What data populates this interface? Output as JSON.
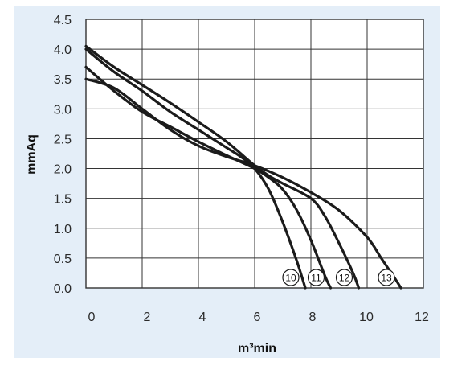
{
  "colors": {
    "panel_background": "#e4eef8",
    "plot_background": "#ffffff",
    "grid": "#333333",
    "curve": "#1b1b1b"
  },
  "chart_data": {
    "type": "line",
    "title": "",
    "xlabel": "m³min",
    "ylabel": "mmAq",
    "xlim": [
      0,
      12
    ],
    "ylim": [
      0,
      4.5
    ],
    "x_ticks": [
      "0",
      "2",
      "4",
      "6",
      "8",
      "10",
      "12"
    ],
    "y_ticks": [
      "0.0",
      "0.5",
      "1.0",
      "1.5",
      "2.0",
      "2.5",
      "3.0",
      "3.5",
      "4.0",
      "4.5"
    ],
    "grid": true,
    "series": [
      {
        "name": "10",
        "points": [
          [
            0,
            4.0
          ],
          [
            1,
            3.62
          ],
          [
            2,
            3.3
          ],
          [
            3,
            2.95
          ],
          [
            4,
            2.65
          ],
          [
            5,
            2.35
          ],
          [
            5.5,
            2.2
          ],
          [
            6,
            2.0
          ],
          [
            6.5,
            1.65
          ],
          [
            7,
            1.1
          ],
          [
            7.5,
            0.45
          ],
          [
            7.8,
            0.0
          ]
        ]
      },
      {
        "name": "11",
        "points": [
          [
            0,
            3.7
          ],
          [
            1,
            3.3
          ],
          [
            2,
            2.95
          ],
          [
            3,
            2.7
          ],
          [
            4,
            2.45
          ],
          [
            5,
            2.22
          ],
          [
            6,
            2.0
          ],
          [
            6.5,
            1.85
          ],
          [
            7,
            1.65
          ],
          [
            7.5,
            1.3
          ],
          [
            8,
            0.8
          ],
          [
            8.5,
            0.2
          ],
          [
            8.7,
            0.0
          ]
        ]
      },
      {
        "name": "12",
        "points": [
          [
            0,
            4.05
          ],
          [
            1,
            3.7
          ],
          [
            2,
            3.4
          ],
          [
            3,
            3.1
          ],
          [
            4,
            2.78
          ],
          [
            5,
            2.45
          ],
          [
            6,
            2.05
          ],
          [
            6.5,
            1.88
          ],
          [
            7,
            1.75
          ],
          [
            8,
            1.5
          ],
          [
            8.5,
            1.2
          ],
          [
            9,
            0.75
          ],
          [
            9.5,
            0.25
          ],
          [
            9.7,
            0.0
          ]
        ]
      },
      {
        "name": "13",
        "points": [
          [
            0,
            3.5
          ],
          [
            1,
            3.35
          ],
          [
            2,
            3.0
          ],
          [
            3,
            2.65
          ],
          [
            4,
            2.38
          ],
          [
            5,
            2.2
          ],
          [
            6,
            2.05
          ],
          [
            7,
            1.85
          ],
          [
            8,
            1.6
          ],
          [
            9,
            1.3
          ],
          [
            10,
            0.85
          ],
          [
            10.5,
            0.5
          ],
          [
            11,
            0.15
          ],
          [
            11.2,
            0.0
          ]
        ]
      }
    ]
  }
}
